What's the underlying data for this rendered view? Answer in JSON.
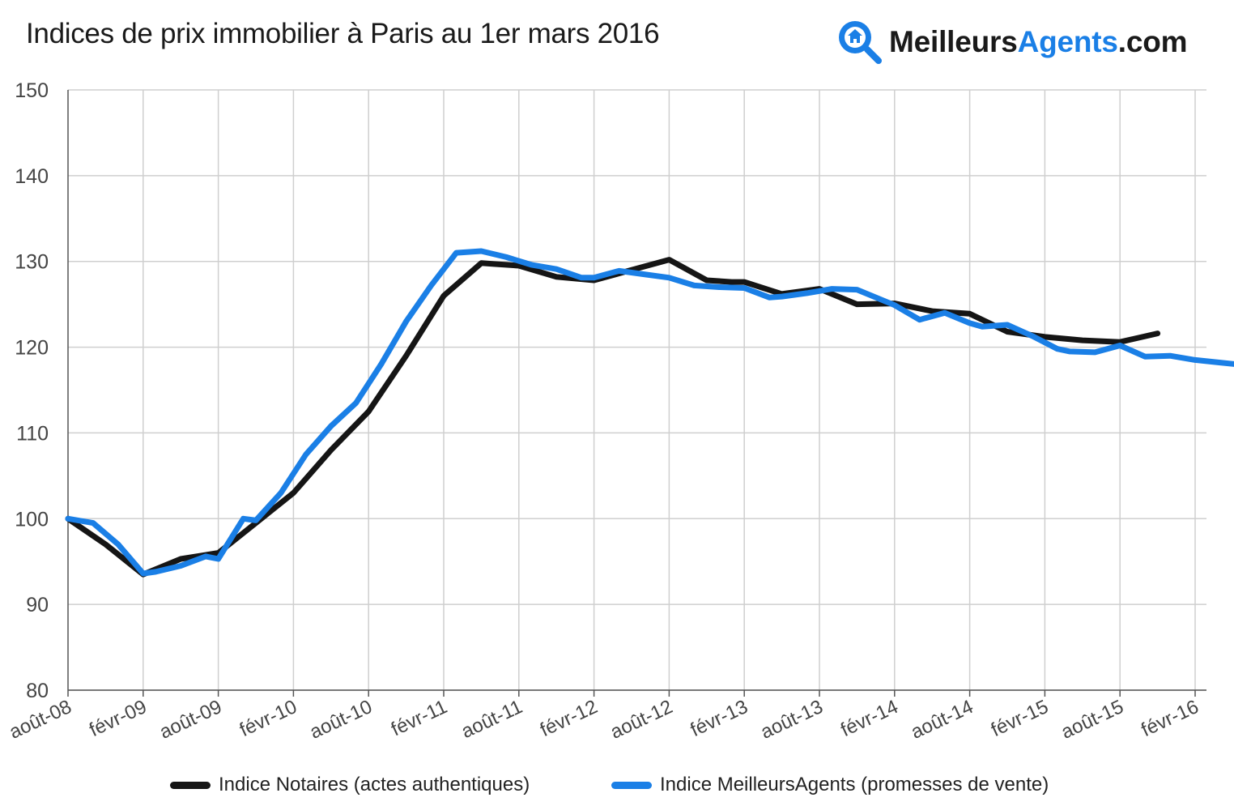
{
  "title": "Indices de prix immobilier à Paris au 1er mars 2016",
  "brand": {
    "part1": "Meilleurs",
    "part2": "Agents",
    "part3": ".com",
    "logo_icon": "house-magnifier-icon",
    "accent_color": "#1a7fe6"
  },
  "chart_data": {
    "type": "line",
    "title": "Indices de prix immobilier à Paris au 1er mars 2016",
    "xlabel": "",
    "ylabel": "",
    "ylim": [
      80,
      150
    ],
    "yticks": [
      80,
      90,
      100,
      110,
      120,
      130,
      140,
      150
    ],
    "xticks": [
      "août-08",
      "févr-09",
      "août-09",
      "févr-10",
      "août-10",
      "févr-11",
      "août-11",
      "févr-12",
      "août-12",
      "févr-13",
      "août-13",
      "févr-14",
      "août-14",
      "févr-15",
      "août-15",
      "févr-16"
    ],
    "x_unit": "months since août-08",
    "grid": true,
    "legend_position": "bottom",
    "series": [
      {
        "name": "Indice Notaires (actes authentiques)",
        "color": "#151515",
        "x": [
          0,
          3,
          6,
          9,
          12,
          15,
          18,
          21,
          24,
          27,
          30,
          33,
          34,
          36,
          39,
          42,
          45,
          48,
          51,
          53,
          54,
          57,
          60,
          63,
          66,
          69,
          72,
          75,
          78,
          81,
          84,
          87,
          89,
          91,
          93,
          95
        ],
        "y": [
          100,
          97,
          93.5,
          95.3,
          96,
          99.5,
          103,
          108,
          112.5,
          119,
          126,
          129.8,
          129.7,
          129.5,
          128.2,
          127.8,
          129,
          130.2,
          127.8,
          127.6,
          127.6,
          126.2,
          126.8,
          125,
          125.1,
          124.2,
          123.9,
          121.8,
          121.2,
          120.8,
          120.6,
          121.6,
          null,
          null,
          null,
          null
        ]
      },
      {
        "name": "Indice MeilleursAgents (promesses de vente)",
        "color": "#1a7fe6",
        "x": [
          0,
          2,
          4,
          6,
          7,
          9,
          11,
          12,
          14,
          15,
          17,
          19,
          21,
          23,
          25,
          27,
          29,
          31,
          33,
          35,
          37,
          39,
          41,
          42,
          44,
          46,
          48,
          50,
          52,
          54,
          56,
          57,
          59,
          61,
          63,
          65,
          66,
          68,
          70,
          72,
          73,
          75,
          77,
          79,
          80,
          82,
          84,
          86,
          88,
          90,
          92,
          94
        ],
        "y": [
          100,
          99.5,
          97,
          93.6,
          93.8,
          94.5,
          95.6,
          95.3,
          100,
          99.8,
          103,
          107.5,
          110.8,
          113.5,
          118,
          123,
          127.2,
          131,
          131.2,
          130.5,
          129.6,
          129.1,
          128.1,
          128.1,
          128.9,
          128.5,
          128.1,
          127.2,
          127,
          126.9,
          125.8,
          125.9,
          126.3,
          126.8,
          126.7,
          125.5,
          124.9,
          123.2,
          124,
          122.8,
          122.4,
          122.6,
          121.3,
          119.8,
          119.5,
          119.4,
          120.2,
          118.9,
          119,
          118.5,
          118.2,
          117.9
        ]
      }
    ]
  },
  "legend": [
    {
      "label": "Indice Notaires (actes authentiques)",
      "color": "#151515"
    },
    {
      "label": "Indice MeilleursAgents (promesses de vente)",
      "color": "#1a7fe6"
    }
  ]
}
